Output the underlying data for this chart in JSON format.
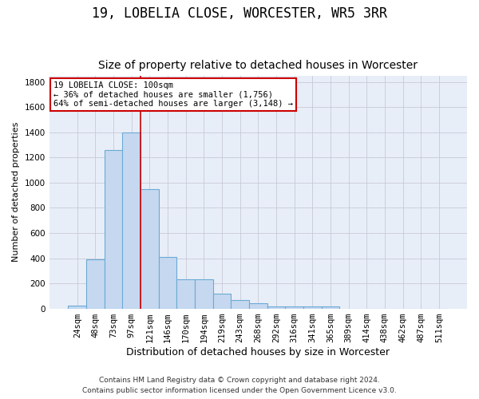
{
  "title": "19, LOBELIA CLOSE, WORCESTER, WR5 3RR",
  "subtitle": "Size of property relative to detached houses in Worcester",
  "xlabel": "Distribution of detached houses by size in Worcester",
  "ylabel": "Number of detached properties",
  "footnote1": "Contains HM Land Registry data © Crown copyright and database right 2024.",
  "footnote2": "Contains public sector information licensed under the Open Government Licence v3.0.",
  "bar_labels": [
    "24sqm",
    "48sqm",
    "73sqm",
    "97sqm",
    "121sqm",
    "146sqm",
    "170sqm",
    "194sqm",
    "219sqm",
    "243sqm",
    "268sqm",
    "292sqm",
    "316sqm",
    "341sqm",
    "365sqm",
    "389sqm",
    "414sqm",
    "438sqm",
    "462sqm",
    "487sqm",
    "511sqm"
  ],
  "bar_values": [
    25,
    390,
    1260,
    1400,
    950,
    410,
    235,
    230,
    115,
    65,
    40,
    18,
    15,
    15,
    15,
    0,
    0,
    0,
    0,
    0,
    0
  ],
  "bar_color": "#c5d8f0",
  "bar_edge_color": "#6aaad4",
  "background_color": "#e8eef8",
  "grid_color": "#c8c8d8",
  "ylim_max": 1850,
  "yticks": [
    0,
    200,
    400,
    600,
    800,
    1000,
    1200,
    1400,
    1600,
    1800
  ],
  "vline_x": 3.5,
  "vline_color": "#cc0000",
  "property_bar_index": 3,
  "ann_line1": "19 LOBELIA CLOSE: 100sqm",
  "ann_line2": "← 36% of detached houses are smaller (1,756)",
  "ann_line3": "64% of semi-detached houses are larger (3,148) →",
  "title_fontsize": 12,
  "subtitle_fontsize": 10,
  "ylabel_fontsize": 8,
  "xlabel_fontsize": 9,
  "tick_fontsize": 7.5,
  "ann_fontsize": 7.5,
  "footnote_fontsize": 6.5
}
